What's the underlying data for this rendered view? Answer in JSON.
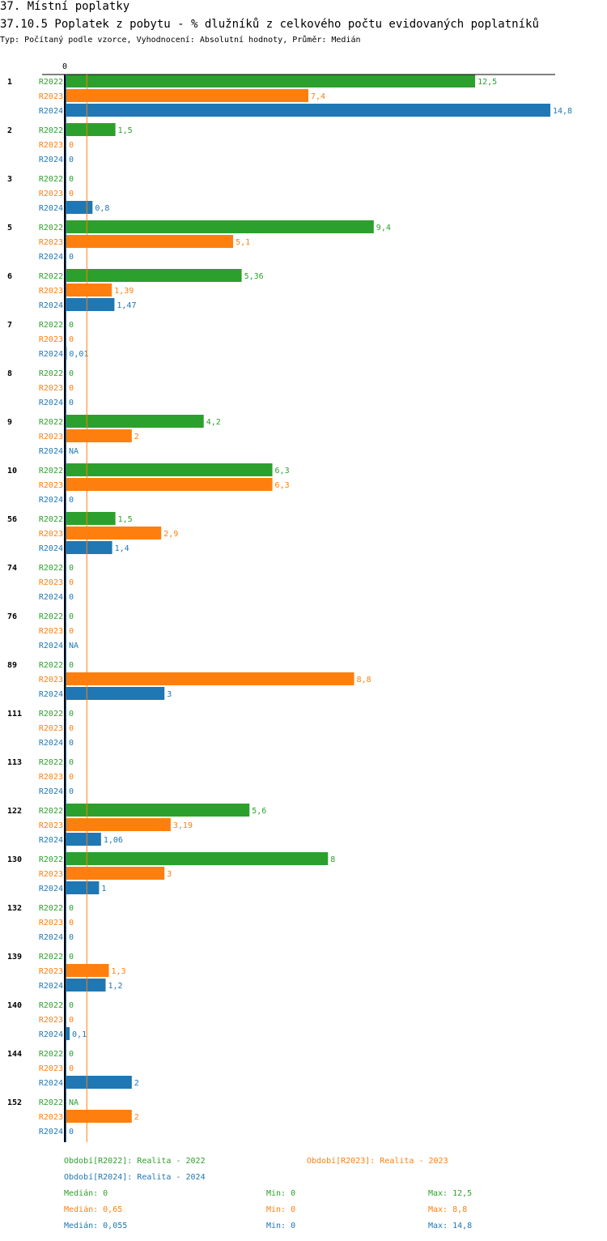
{
  "header": {
    "title": "37. Místní poplatky",
    "subtitle": "37.10.5 Poplatek z pobytu - % dlužníků z celkového počtu evidovaných poplatníků",
    "meta": "Typ: Počítaný podle vzorce, Vyhodnocení: Absolutní hodnoty, Průměr: Medián"
  },
  "chart_data": {
    "type": "bar",
    "orientation": "horizontal",
    "title": "37.10.5 Poplatek z pobytu - % dlužníků z celkového počtu evidovaných poplatníků",
    "axis_zero_label": "0",
    "xlim": [
      0,
      14.8
    ],
    "series_names": [
      "R2022",
      "R2023",
      "R2024"
    ],
    "colors": {
      "R2022": "#2ca02c",
      "R2023": "#ff7f0e",
      "R2024": "#1f77b4"
    },
    "median_line": {
      "series": "R2023",
      "value": 0.65
    },
    "categories": [
      "1",
      "2",
      "3",
      "5",
      "6",
      "7",
      "8",
      "9",
      "10",
      "56",
      "74",
      "76",
      "89",
      "111",
      "113",
      "122",
      "130",
      "132",
      "139",
      "140",
      "144",
      "152"
    ],
    "values": [
      [
        "12,5",
        "7,4",
        "14,8"
      ],
      [
        "1,5",
        "0",
        "0"
      ],
      [
        "0",
        "0",
        "0,8"
      ],
      [
        "9,4",
        "5,1",
        "0"
      ],
      [
        "5,36",
        "1,39",
        "1,47"
      ],
      [
        "0",
        "0",
        "0,01"
      ],
      [
        "0",
        "0",
        "0"
      ],
      [
        "4,2",
        "2",
        "NA"
      ],
      [
        "6,3",
        "6,3",
        "0"
      ],
      [
        "1,5",
        "2,9",
        "1,4"
      ],
      [
        "0",
        "0",
        "0"
      ],
      [
        "0",
        "0",
        "NA"
      ],
      [
        "0",
        "8,8",
        "3"
      ],
      [
        "0",
        "0",
        "0"
      ],
      [
        "0",
        "0",
        "0"
      ],
      [
        "5,6",
        "3,19",
        "1,06"
      ],
      [
        "8",
        "3",
        "1"
      ],
      [
        "0",
        "0",
        "0"
      ],
      [
        "0",
        "1,3",
        "1,2"
      ],
      [
        "0",
        "0",
        "0,1"
      ],
      [
        "0",
        "0",
        "2"
      ],
      [
        "NA",
        "2",
        "0"
      ]
    ]
  },
  "legend": {
    "periods": [
      "Období[R2022]: Realita - 2022",
      "Období[R2023]: Realita - 2023",
      "Období[R2024]: Realita - 2024"
    ],
    "stats": [
      {
        "median": "Medián: 0",
        "min": "Min: 0",
        "max": "Max: 12,5"
      },
      {
        "median": "Medián: 0,65",
        "min": "Min: 0",
        "max": "Max: 8,8"
      },
      {
        "median": "Medián: 0,055",
        "min": "Min: 0",
        "max": "Max: 14,8"
      }
    ]
  }
}
